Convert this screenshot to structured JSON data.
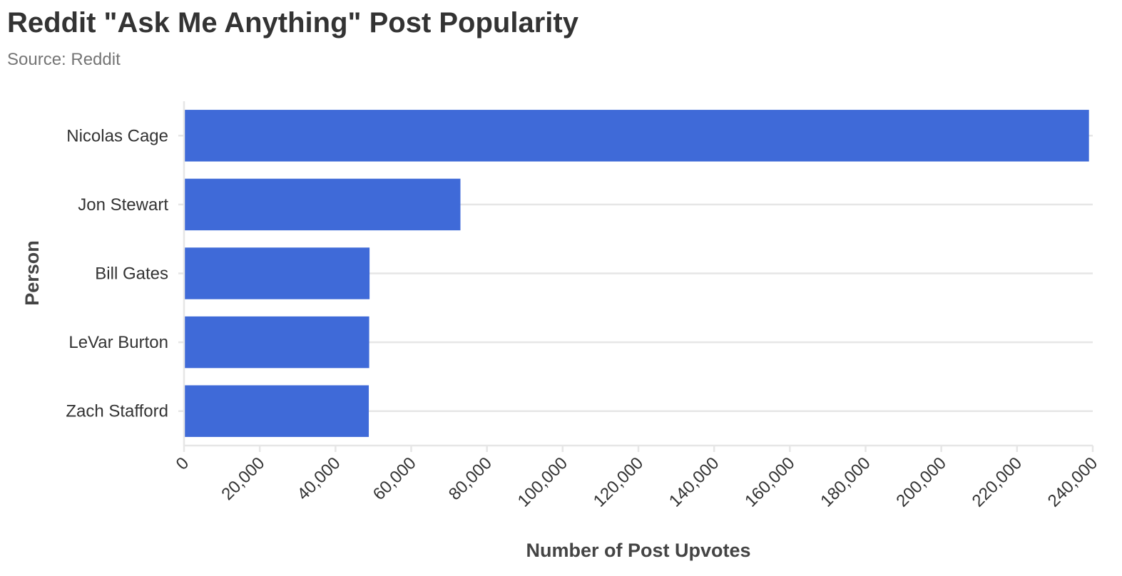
{
  "chart_data": {
    "type": "bar",
    "orientation": "horizontal",
    "title": "Reddit \"Ask Me Anything\" Post Popularity",
    "subtitle": "Source: Reddit",
    "xlabel": "Number of Post Upvotes",
    "ylabel": "Person",
    "categories": [
      "Nicolas Cage",
      "Jon Stewart",
      "Bill Gates",
      "LeVar Burton",
      "Zach Stafford"
    ],
    "values": [
      239000,
      73000,
      49000,
      48900,
      48800
    ],
    "xlim": [
      0,
      240000
    ],
    "x_ticks": [
      0,
      20000,
      40000,
      60000,
      80000,
      100000,
      120000,
      140000,
      160000,
      180000,
      200000,
      220000,
      240000
    ],
    "x_tick_labels": [
      "0",
      "20,000",
      "40,000",
      "60,000",
      "80,000",
      "100,000",
      "120,000",
      "140,000",
      "160,000",
      "180,000",
      "200,000",
      "220,000",
      "240,000"
    ],
    "grid": true,
    "bar_color": "#3f6ad8",
    "grid_color": "#e6e6e6"
  }
}
